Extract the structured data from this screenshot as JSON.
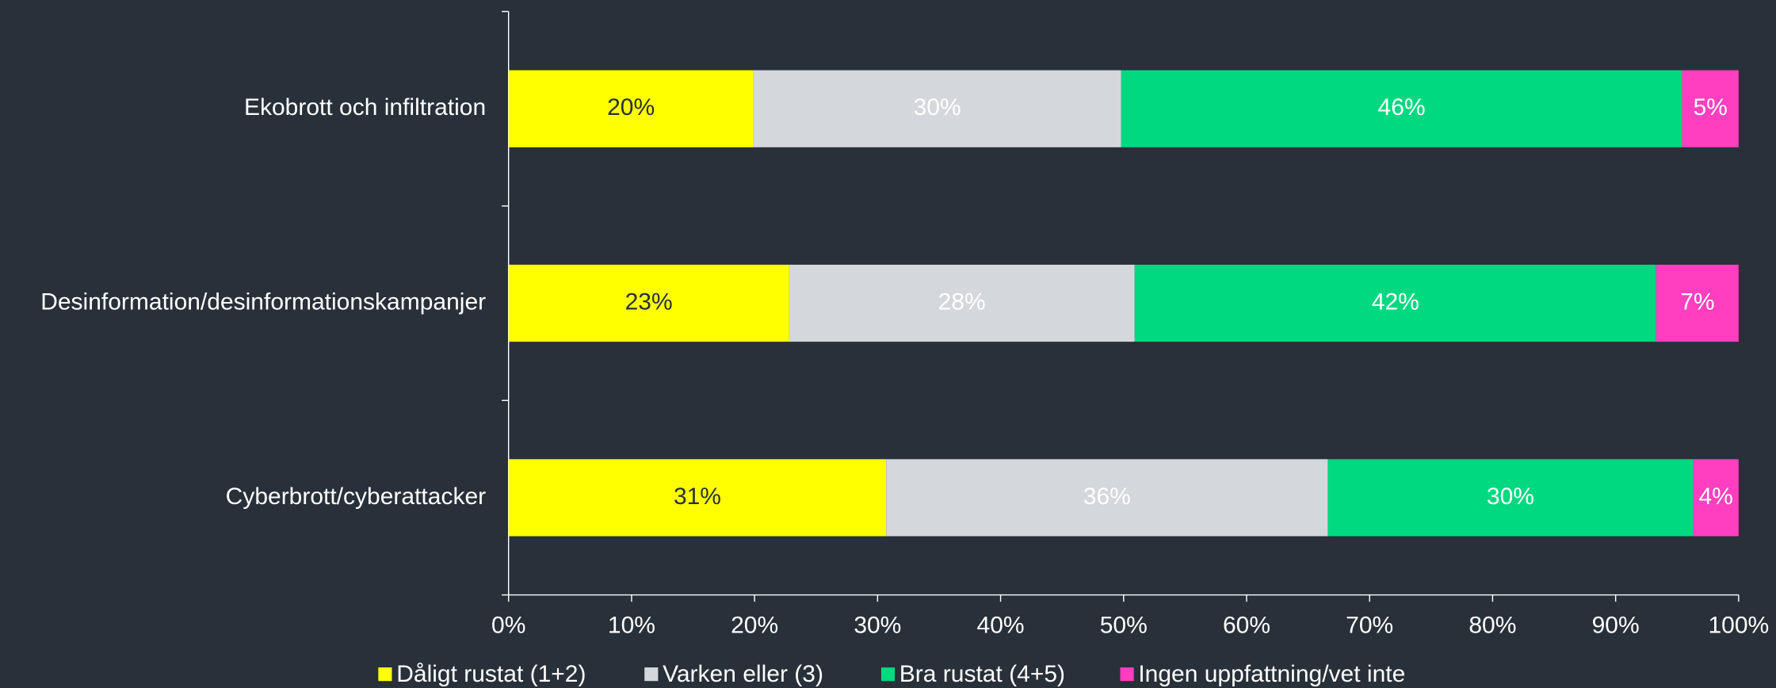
{
  "chart_data": {
    "type": "stacked_bar_horizontal",
    "categories": [
      "Ekobrott och infiltration",
      "Desinformation/desinformationskampanjer",
      "Cyberbrott/cyberattacker"
    ],
    "series": [
      {
        "name": "Dåligt rustat (1+2)",
        "color": "#ffff00",
        "label_color": "#283039",
        "values": [
          19.9,
          22.8,
          30.7
        ],
        "value_labels": [
          "20%",
          "23%",
          "31%"
        ]
      },
      {
        "name": "Varken eller (3)",
        "color": "#d4d7db",
        "label_color": "#ffffff",
        "values": [
          29.9,
          28.1,
          35.9
        ],
        "value_labels": [
          "30%",
          "28%",
          "36%"
        ]
      },
      {
        "name": "Bra rustat (4+5)",
        "color": "#00d980",
        "label_color": "#ffffff",
        "values": [
          45.6,
          42.4,
          29.7
        ],
        "value_labels": [
          "46%",
          "42%",
          "30%"
        ]
      },
      {
        "name": "Ingen uppfattning/vet inte",
        "color": "#ff3fbf",
        "label_color": "#ffffff",
        "values": [
          4.6,
          6.7,
          3.7
        ],
        "value_labels": [
          "5%",
          "7%",
          "4%"
        ]
      }
    ],
    "xlim": [
      0,
      100
    ],
    "xticks": [
      {
        "value": 0,
        "label": "0%"
      },
      {
        "value": 10,
        "label": "10%"
      },
      {
        "value": 20,
        "label": "20%"
      },
      {
        "value": 30,
        "label": "30%"
      },
      {
        "value": 40,
        "label": "40%"
      },
      {
        "value": 50,
        "label": "50%"
      },
      {
        "value": 60,
        "label": "60%"
      },
      {
        "value": 70,
        "label": "70%"
      },
      {
        "value": 80,
        "label": "80%"
      },
      {
        "value": 90,
        "label": "90%"
      },
      {
        "value": 100,
        "label": "100%"
      }
    ],
    "legend": "bottom"
  }
}
